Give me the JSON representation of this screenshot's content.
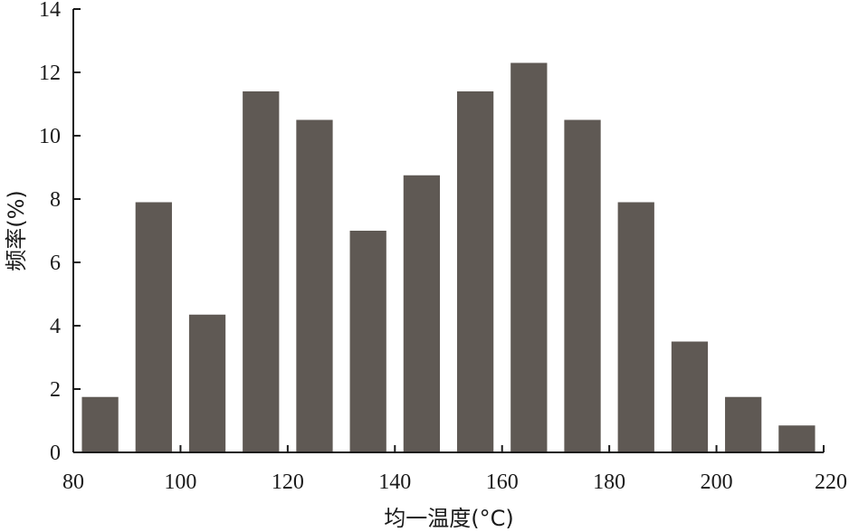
{
  "chart_data": {
    "type": "bar",
    "xlabel": "均一温度(°C)",
    "ylabel": "频率(%)",
    "xlim": [
      80,
      220
    ],
    "ylim": [
      0,
      14
    ],
    "x_ticks": [
      80,
      100,
      120,
      140,
      160,
      180,
      200,
      220
    ],
    "y_ticks": [
      0,
      2,
      4,
      6,
      8,
      10,
      12,
      14
    ],
    "bin_width": 10,
    "bins": [
      {
        "start": 80,
        "end": 90,
        "value": 1.75
      },
      {
        "start": 90,
        "end": 100,
        "value": 7.9
      },
      {
        "start": 100,
        "end": 110,
        "value": 4.35
      },
      {
        "start": 110,
        "end": 120,
        "value": 11.4
      },
      {
        "start": 120,
        "end": 130,
        "value": 10.5
      },
      {
        "start": 130,
        "end": 140,
        "value": 7.0
      },
      {
        "start": 140,
        "end": 150,
        "value": 8.75
      },
      {
        "start": 150,
        "end": 160,
        "value": 11.4
      },
      {
        "start": 160,
        "end": 170,
        "value": 12.3
      },
      {
        "start": 170,
        "end": 180,
        "value": 10.5
      },
      {
        "start": 180,
        "end": 190,
        "value": 7.9
      },
      {
        "start": 190,
        "end": 200,
        "value": 3.5
      },
      {
        "start": 200,
        "end": 210,
        "value": 1.75
      },
      {
        "start": 210,
        "end": 220,
        "value": 0.85
      }
    ],
    "bar_color": "#5f5954",
    "axis_color": "#1a1a1a",
    "grid": false,
    "legend": "none"
  }
}
